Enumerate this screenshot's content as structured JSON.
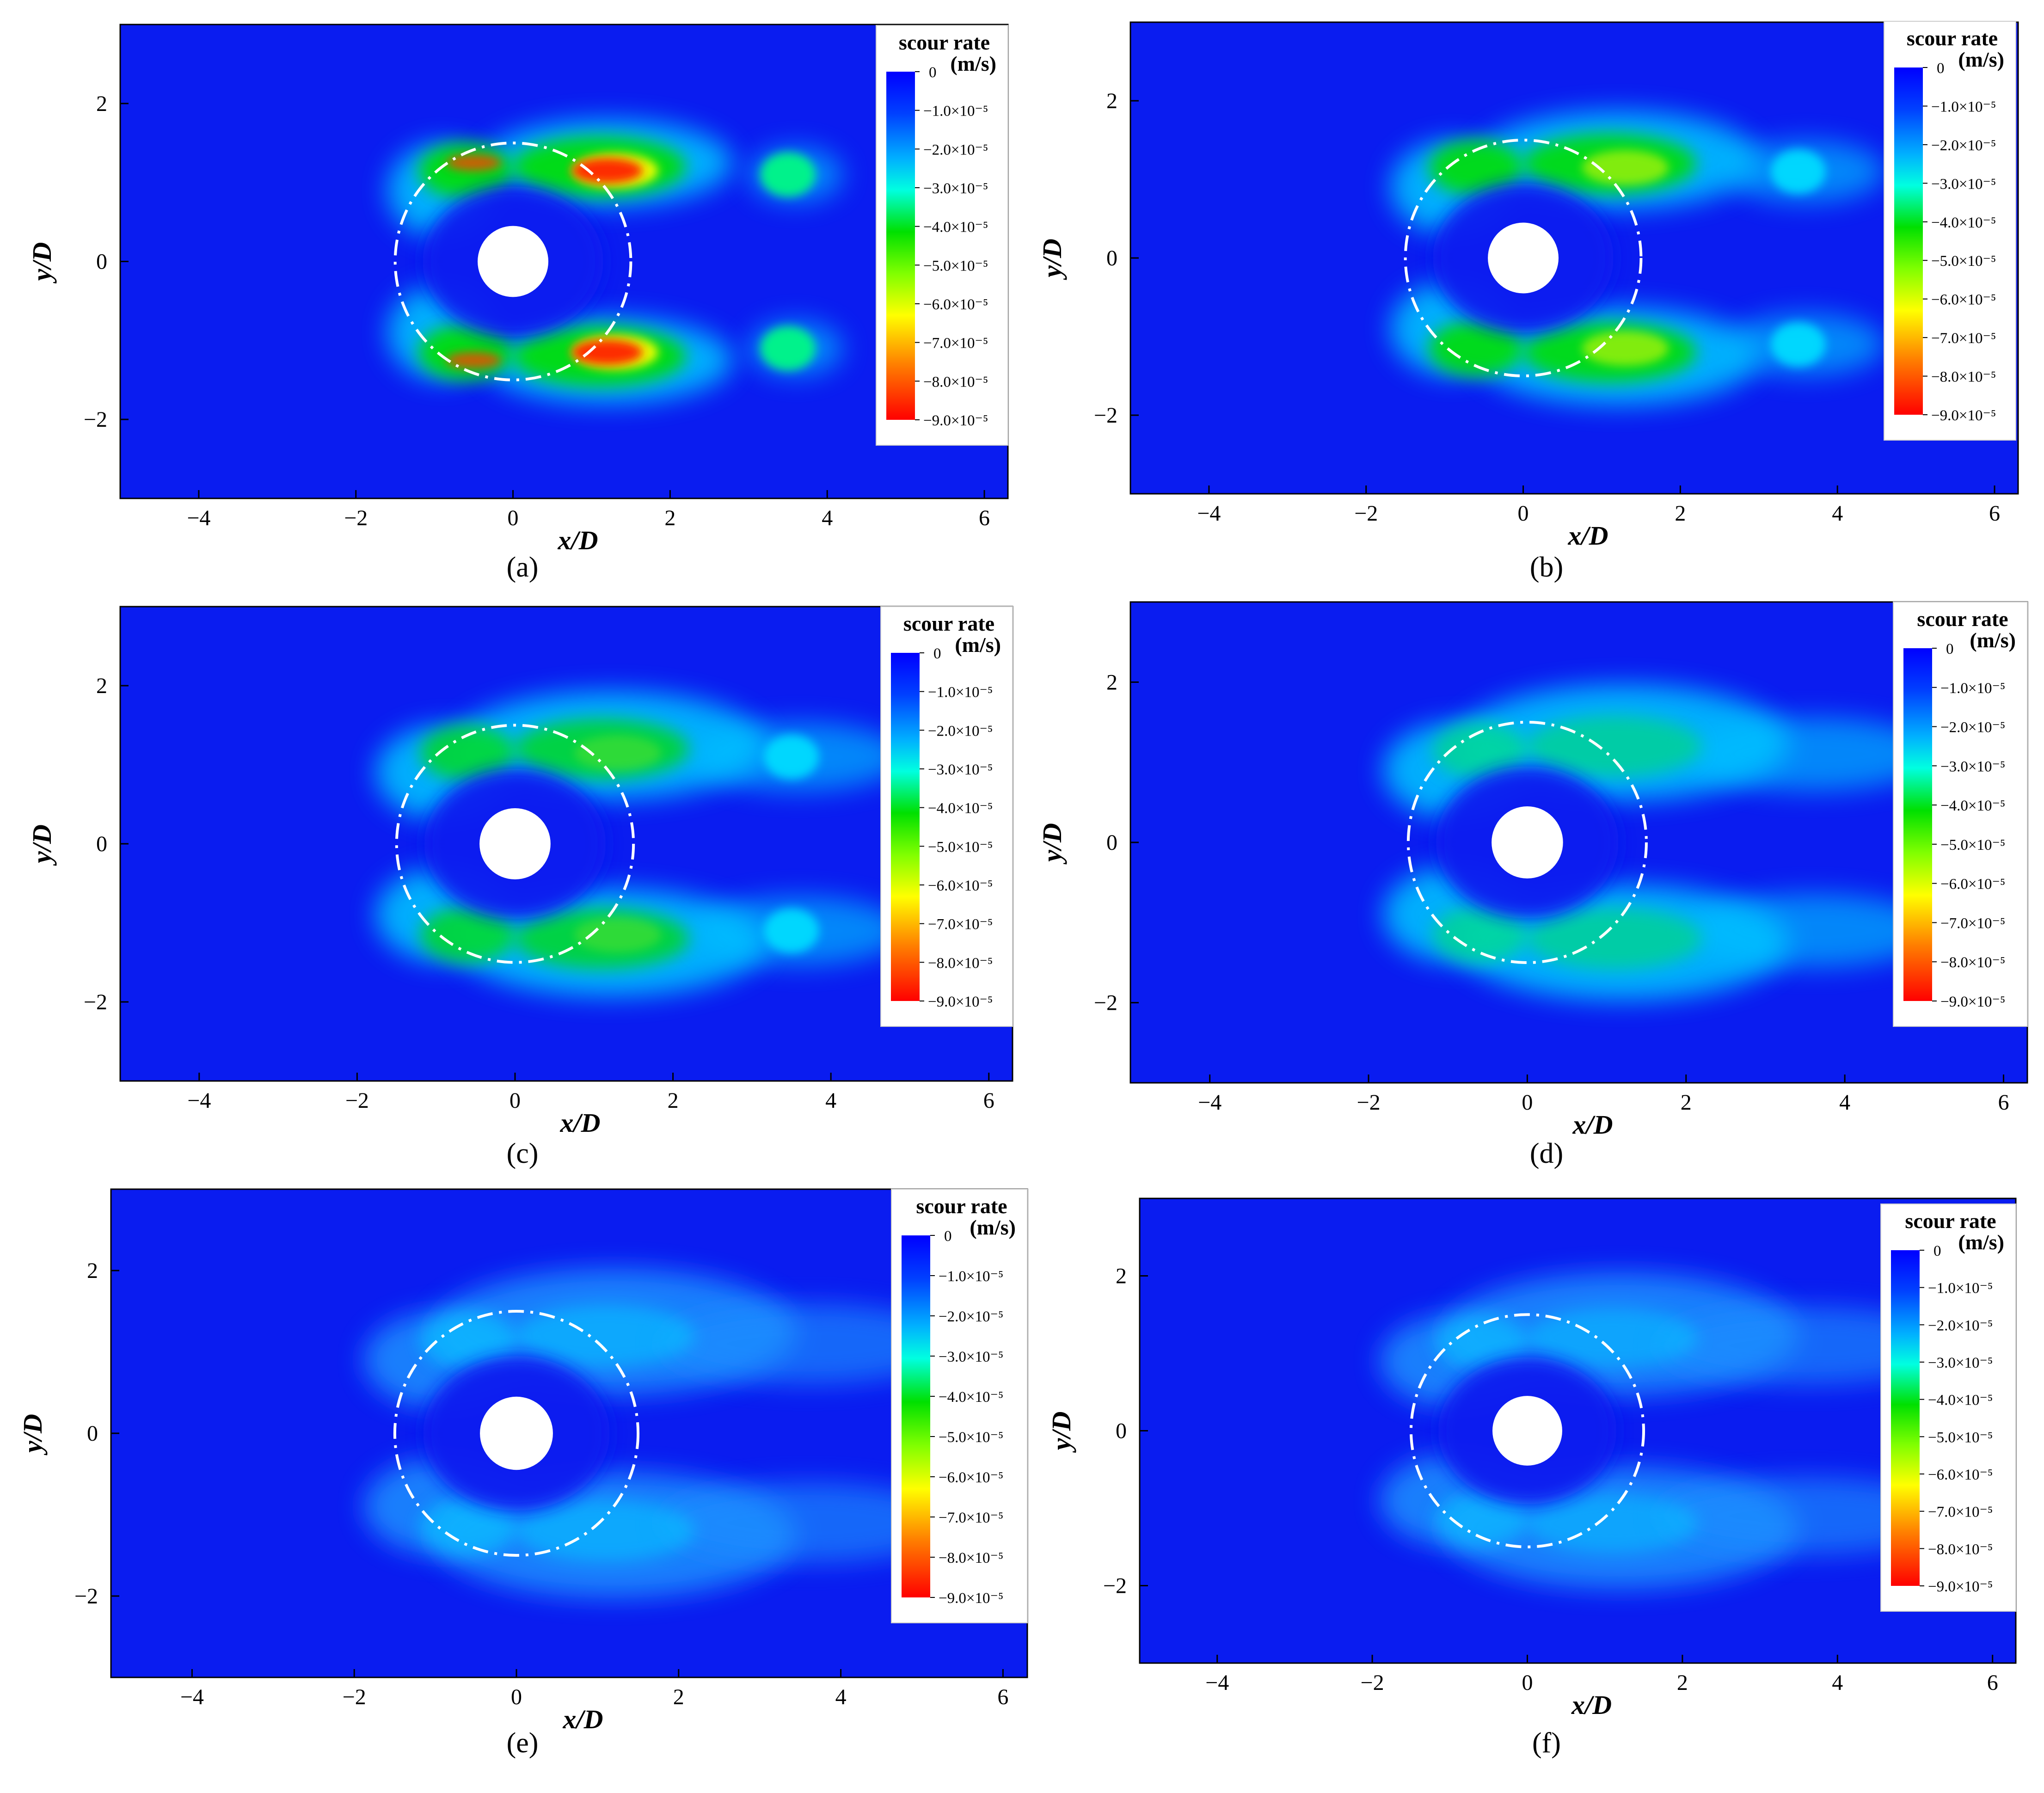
{
  "figure": {
    "panel_labels": [
      "(a)",
      "(b)",
      "(c)",
      "(d)",
      "(e)",
      "(f)"
    ]
  },
  "colors": {
    "background": "#0a1cf0",
    "ring": "#ffffff",
    "pier": "#ffffff",
    "colormap": [
      "#ff0000",
      "#ff8000",
      "#ffff00",
      "#00e000",
      "#00ffff",
      "#0030ff",
      "#0000ff"
    ]
  },
  "chart_data": [
    {
      "type": "heatmap",
      "panel": "(a)",
      "xlabel": "x/D",
      "ylabel": "y/D",
      "xlim": [
        -5,
        6.3
      ],
      "ylim": [
        -3,
        3
      ],
      "xticks": [
        -4,
        -2,
        0,
        2,
        4,
        6
      ],
      "yticks": [
        -2,
        0,
        2
      ],
      "xtick_labels": [
        "−4",
        "−2",
        "0",
        "2",
        "4",
        "6"
      ],
      "ytick_labels": [
        "−2",
        "0",
        "2"
      ],
      "colorbar": {
        "title": "scour rate",
        "unit": "(m/s)",
        "range": [
          -9e-05,
          0
        ],
        "tick_labels": [
          "0",
          "−1.0×10⁻⁵",
          "−2.0×10⁻⁵",
          "−3.0×10⁻⁵",
          "−4.0×10⁻⁵",
          "−5.0×10⁻⁵",
          "−6.0×10⁻⁵",
          "−7.0×10⁻⁵",
          "−8.0×10⁻⁵",
          "−9.0×10⁻⁵"
        ]
      },
      "ring_radius": 1.5,
      "pier_radius": 0.45,
      "intensity": 1.0,
      "max_scour_rate": -9e-05
    },
    {
      "type": "heatmap",
      "panel": "(b)",
      "xlabel": "x/D",
      "ylabel": "y/D",
      "xlim": [
        -5,
        6.3
      ],
      "ylim": [
        -3,
        3
      ],
      "xticks": [
        -4,
        -2,
        0,
        2,
        4,
        6
      ],
      "yticks": [
        -2,
        0,
        2
      ],
      "xtick_labels": [
        "−4",
        "−2",
        "0",
        "2",
        "4",
        "6"
      ],
      "ytick_labels": [
        "−2",
        "0",
        "2"
      ],
      "colorbar": {
        "title": "scour rate",
        "unit": "(m/s)",
        "range": [
          -9e-05,
          0
        ],
        "tick_labels": [
          "0",
          "−1.0×10⁻⁵",
          "−2.0×10⁻⁵",
          "−3.0×10⁻⁵",
          "−4.0×10⁻⁵",
          "−5.0×10⁻⁵",
          "−6.0×10⁻⁵",
          "−7.0×10⁻⁵",
          "−8.0×10⁻⁵",
          "−9.0×10⁻⁵"
        ]
      },
      "ring_radius": 1.5,
      "pier_radius": 0.45,
      "intensity": 0.78,
      "max_scour_rate": -7e-05
    },
    {
      "type": "heatmap",
      "panel": "(c)",
      "xlabel": "x/D",
      "ylabel": "y/D",
      "xlim": [
        -5,
        6.3
      ],
      "ylim": [
        -3,
        3
      ],
      "xticks": [
        -4,
        -2,
        0,
        2,
        4,
        6
      ],
      "yticks": [
        -2,
        0,
        2
      ],
      "xtick_labels": [
        "−4",
        "−2",
        "0",
        "2",
        "4",
        "6"
      ],
      "ytick_labels": [
        "−2",
        "0",
        "2"
      ],
      "colorbar": {
        "title": "scour rate",
        "unit": "(m/s)",
        "range": [
          -9e-05,
          0
        ],
        "tick_labels": [
          "0",
          "−1.0×10⁻⁵",
          "−2.0×10⁻⁵",
          "−3.0×10⁻⁵",
          "−4.0×10⁻⁵",
          "−5.0×10⁻⁵",
          "−6.0×10⁻⁵",
          "−7.0×10⁻⁵",
          "−8.0×10⁻⁵",
          "−9.0×10⁻⁵"
        ]
      },
      "ring_radius": 1.5,
      "pier_radius": 0.45,
      "intensity": 0.6,
      "max_scour_rate": -5.5e-05
    },
    {
      "type": "heatmap",
      "panel": "(d)",
      "xlabel": "x/D",
      "ylabel": "y/D",
      "xlim": [
        -5,
        6.3
      ],
      "ylim": [
        -3,
        3
      ],
      "xticks": [
        -4,
        -2,
        0,
        2,
        4,
        6
      ],
      "yticks": [
        -2,
        0,
        2
      ],
      "xtick_labels": [
        "−4",
        "−2",
        "0",
        "2",
        "4",
        "6"
      ],
      "ytick_labels": [
        "−2",
        "0",
        "2"
      ],
      "colorbar": {
        "title": "scour rate",
        "unit": "(m/s)",
        "range": [
          -9e-05,
          0
        ],
        "tick_labels": [
          "0",
          "−1.0×10⁻⁵",
          "−2.0×10⁻⁵",
          "−3.0×10⁻⁵",
          "−4.0×10⁻⁵",
          "−5.0×10⁻⁵",
          "−6.0×10⁻⁵",
          "−7.0×10⁻⁵",
          "−8.0×10⁻⁵",
          "−9.0×10⁻⁵"
        ]
      },
      "ring_radius": 1.5,
      "pier_radius": 0.45,
      "intensity": 0.48,
      "max_scour_rate": -4.5e-05
    },
    {
      "type": "heatmap",
      "panel": "(e)",
      "xlabel": "x/D",
      "ylabel": "y/D",
      "xlim": [
        -5,
        6.3
      ],
      "ylim": [
        -3,
        3
      ],
      "xticks": [
        -4,
        -2,
        0,
        2,
        4,
        6
      ],
      "yticks": [
        -2,
        0,
        2
      ],
      "xtick_labels": [
        "−4",
        "−2",
        "0",
        "2",
        "4",
        "6"
      ],
      "ytick_labels": [
        "−2",
        "0",
        "2"
      ],
      "colorbar": {
        "title": "scour rate",
        "unit": "(m/s)",
        "range": [
          -9e-05,
          0
        ],
        "tick_labels": [
          "0",
          "−1.0×10⁻⁵",
          "−2.0×10⁻⁵",
          "−3.0×10⁻⁵",
          "−4.0×10⁻⁵",
          "−5.0×10⁻⁵",
          "−6.0×10⁻⁵",
          "−7.0×10⁻⁵",
          "−8.0×10⁻⁵",
          "−9.0×10⁻⁵"
        ]
      },
      "ring_radius": 1.5,
      "pier_radius": 0.45,
      "intensity": 0.32,
      "max_scour_rate": -2.5e-05
    },
    {
      "type": "heatmap",
      "panel": "(f)",
      "xlabel": "x/D",
      "ylabel": "y/D",
      "xlim": [
        -5,
        6.3
      ],
      "ylim": [
        -3,
        3
      ],
      "xticks": [
        -4,
        -2,
        0,
        2,
        4,
        6
      ],
      "yticks": [
        -2,
        0,
        2
      ],
      "xtick_labels": [
        "−4",
        "−2",
        "0",
        "2",
        "4",
        "6"
      ],
      "ytick_labels": [
        "−2",
        "0",
        "2"
      ],
      "colorbar": {
        "title": "scour rate",
        "unit": "(m/s)",
        "range": [
          -9e-05,
          0
        ],
        "tick_labels": [
          "0",
          "−1.0×10⁻⁵",
          "−2.0×10⁻⁵",
          "−3.0×10⁻⁵",
          "−4.0×10⁻⁵",
          "−5.0×10⁻⁵",
          "−6.0×10⁻⁵",
          "−7.0×10⁻⁵",
          "−8.0×10⁻⁵",
          "−9.0×10⁻⁵"
        ]
      },
      "ring_radius": 1.5,
      "pier_radius": 0.45,
      "intensity": 0.27,
      "max_scour_rate": -2.2e-05
    }
  ]
}
